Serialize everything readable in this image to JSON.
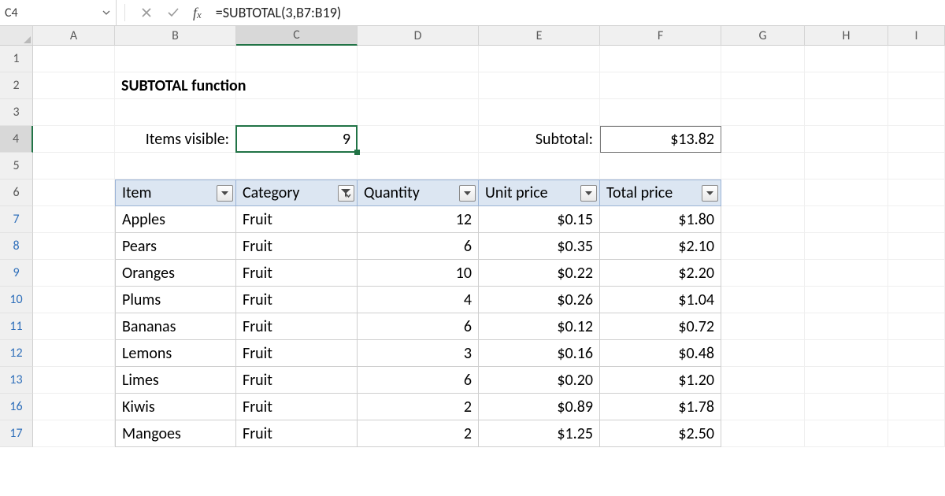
{
  "formula_bar": {
    "name_box": "C4",
    "formula": "=SUBTOTAL(3,B7:B19)"
  },
  "columns": {
    "list": [
      "A",
      "B",
      "C",
      "D",
      "E",
      "F",
      "G",
      "H",
      "I"
    ],
    "widths": {
      "A": 104,
      "B": 154,
      "C": 154,
      "D": 154,
      "E": 154,
      "F": 154,
      "G": 106,
      "H": 106,
      "I": 72
    },
    "active": "C"
  },
  "visible_row_numbers": [
    1,
    2,
    3,
    4,
    5,
    6,
    7,
    8,
    9,
    10,
    11,
    12,
    13,
    16,
    17
  ],
  "hidden_row_numbers": [
    14,
    15
  ],
  "filtered_row_color": "#2f6fba",
  "active_row": 4,
  "title": {
    "cell": "B2",
    "text": "SUBTOTAL function"
  },
  "labels": {
    "items_visible": "Items visible:",
    "subtotal": "Subtotal:"
  },
  "values": {
    "items_visible": "9",
    "subtotal": "$13.82"
  },
  "active_cell": "C4",
  "table": {
    "header_bg": "#dce6f2",
    "header_border": "#9ab3d6",
    "headers": [
      {
        "label": "Item",
        "filtered": false
      },
      {
        "label": "Category",
        "filtered": true
      },
      {
        "label": "Quantity",
        "filtered": false
      },
      {
        "label": "Unit price",
        "filtered": false
      },
      {
        "label": "Total price",
        "filtered": false
      }
    ],
    "rows": [
      {
        "r": 7,
        "item": "Apples",
        "category": "Fruit",
        "quantity": "12",
        "unit_price": "$0.15",
        "total_price": "$1.80"
      },
      {
        "r": 8,
        "item": "Pears",
        "category": "Fruit",
        "quantity": "6",
        "unit_price": "$0.35",
        "total_price": "$2.10"
      },
      {
        "r": 9,
        "item": "Oranges",
        "category": "Fruit",
        "quantity": "10",
        "unit_price": "$0.22",
        "total_price": "$2.20"
      },
      {
        "r": 10,
        "item": "Plums",
        "category": "Fruit",
        "quantity": "4",
        "unit_price": "$0.26",
        "total_price": "$1.04"
      },
      {
        "r": 11,
        "item": "Bananas",
        "category": "Fruit",
        "quantity": "6",
        "unit_price": "$0.12",
        "total_price": "$0.72"
      },
      {
        "r": 12,
        "item": "Lemons",
        "category": "Fruit",
        "quantity": "3",
        "unit_price": "$0.16",
        "total_price": "$0.48"
      },
      {
        "r": 13,
        "item": "Limes",
        "category": "Fruit",
        "quantity": "6",
        "unit_price": "$0.20",
        "total_price": "$1.20"
      },
      {
        "r": 16,
        "item": "Kiwis",
        "category": "Fruit",
        "quantity": "2",
        "unit_price": "$0.89",
        "total_price": "$1.78"
      },
      {
        "r": 17,
        "item": "Mangoes",
        "category": "Fruit",
        "quantity": "2",
        "unit_price": "$1.25",
        "total_price": "$2.50"
      }
    ],
    "text_align": {
      "item": "left",
      "category": "left",
      "quantity": "right",
      "unit_price": "right",
      "total_price": "right"
    }
  },
  "colors": {
    "selection_green": "#217346",
    "grid_line": "#efefef",
    "header_bg": "#f0f0f0",
    "header_border": "#d4d4d4"
  }
}
